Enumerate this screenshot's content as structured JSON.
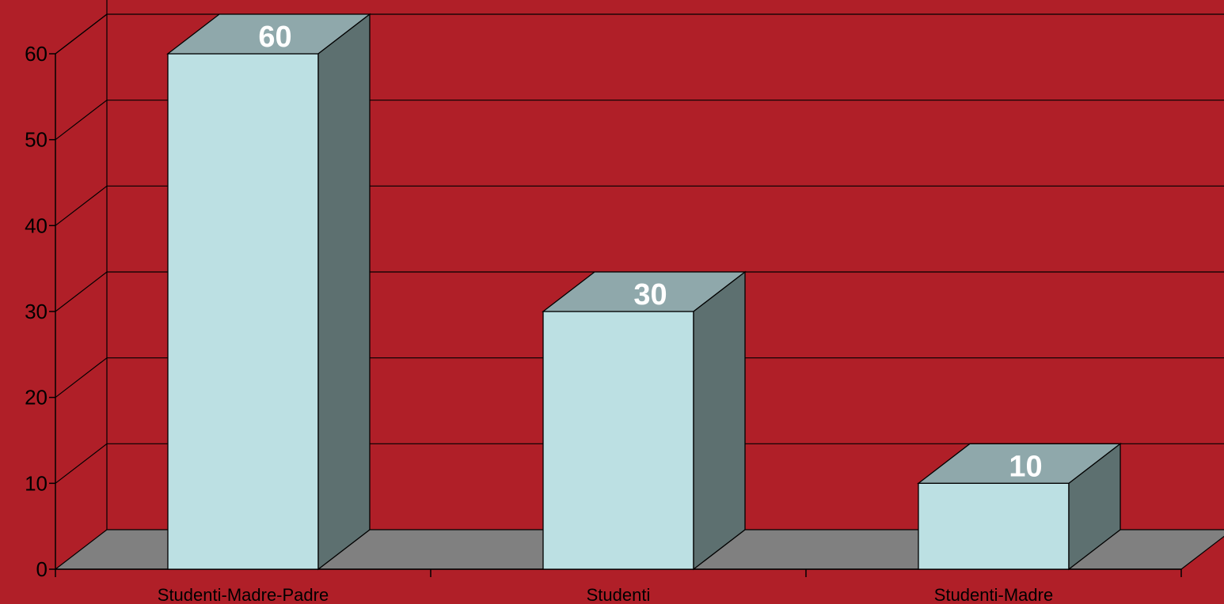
{
  "chart_data": {
    "type": "bar",
    "style": "3d-column",
    "categories": [
      "Studenti-Madre-Padre",
      "Studenti",
      "Studenti-Madre"
    ],
    "values": [
      60,
      30,
      10
    ],
    "data_labels": [
      "60",
      "30",
      "10"
    ],
    "y_ticks": [
      "0",
      "10",
      "20",
      "30",
      "40",
      "50",
      "60"
    ],
    "ylim": [
      0,
      60
    ],
    "grid": true,
    "legend": "none",
    "colors": {
      "background": "#b01f28",
      "bar_front": "#bce0e3",
      "bar_top": "#8fa8ab",
      "bar_side": "#5d7070",
      "floor": "#808080",
      "data_label": "#ffffff",
      "axis": "#000000"
    }
  }
}
